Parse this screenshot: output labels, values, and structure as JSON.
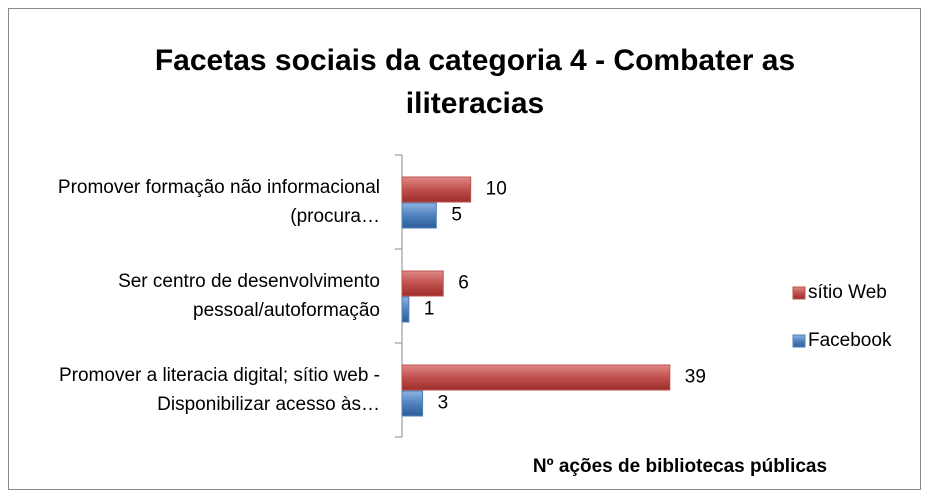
{
  "chart_data": {
    "type": "barh",
    "title": "Facetas sociais da categoria  4 - Combater as iliteracias",
    "categories": [
      "Promover formação não informacional (procura…",
      "Ser centro de desenvolvimento pessoal/autoformação",
      "Promover a literacia digital; sítio web - Disponibilizar acesso às…"
    ],
    "series": [
      {
        "name": "sítio Web",
        "color": "#c0504d",
        "values": [
          10,
          6,
          39
        ]
      },
      {
        "name": "Facebook",
        "color": "#4f81bd",
        "values": [
          5,
          1,
          3
        ]
      }
    ],
    "xlim": [
      0,
      45
    ],
    "x_label": "Nº ações de bibliotecas públicas",
    "legend": "right"
  }
}
